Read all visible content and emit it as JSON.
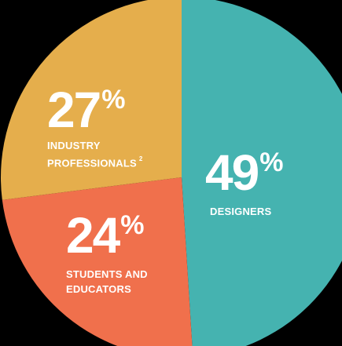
{
  "chart_data": {
    "type": "pie",
    "slices": [
      {
        "label": "DESIGNERS",
        "percent_text": "49",
        "value": 49,
        "color": "#45b3b0"
      },
      {
        "label": "STUDENTS AND EDUCATORS",
        "percent_text": "24",
        "value": 24,
        "color": "#f0704c"
      },
      {
        "label": "INDUSTRY PROFESSIONALS",
        "footnote": "2",
        "percent_text": "27",
        "value": 27,
        "color": "#e5ae4c"
      }
    ],
    "percent_sign": "%"
  },
  "colors": {
    "background": "#000000",
    "label_text": "#ffffff"
  }
}
